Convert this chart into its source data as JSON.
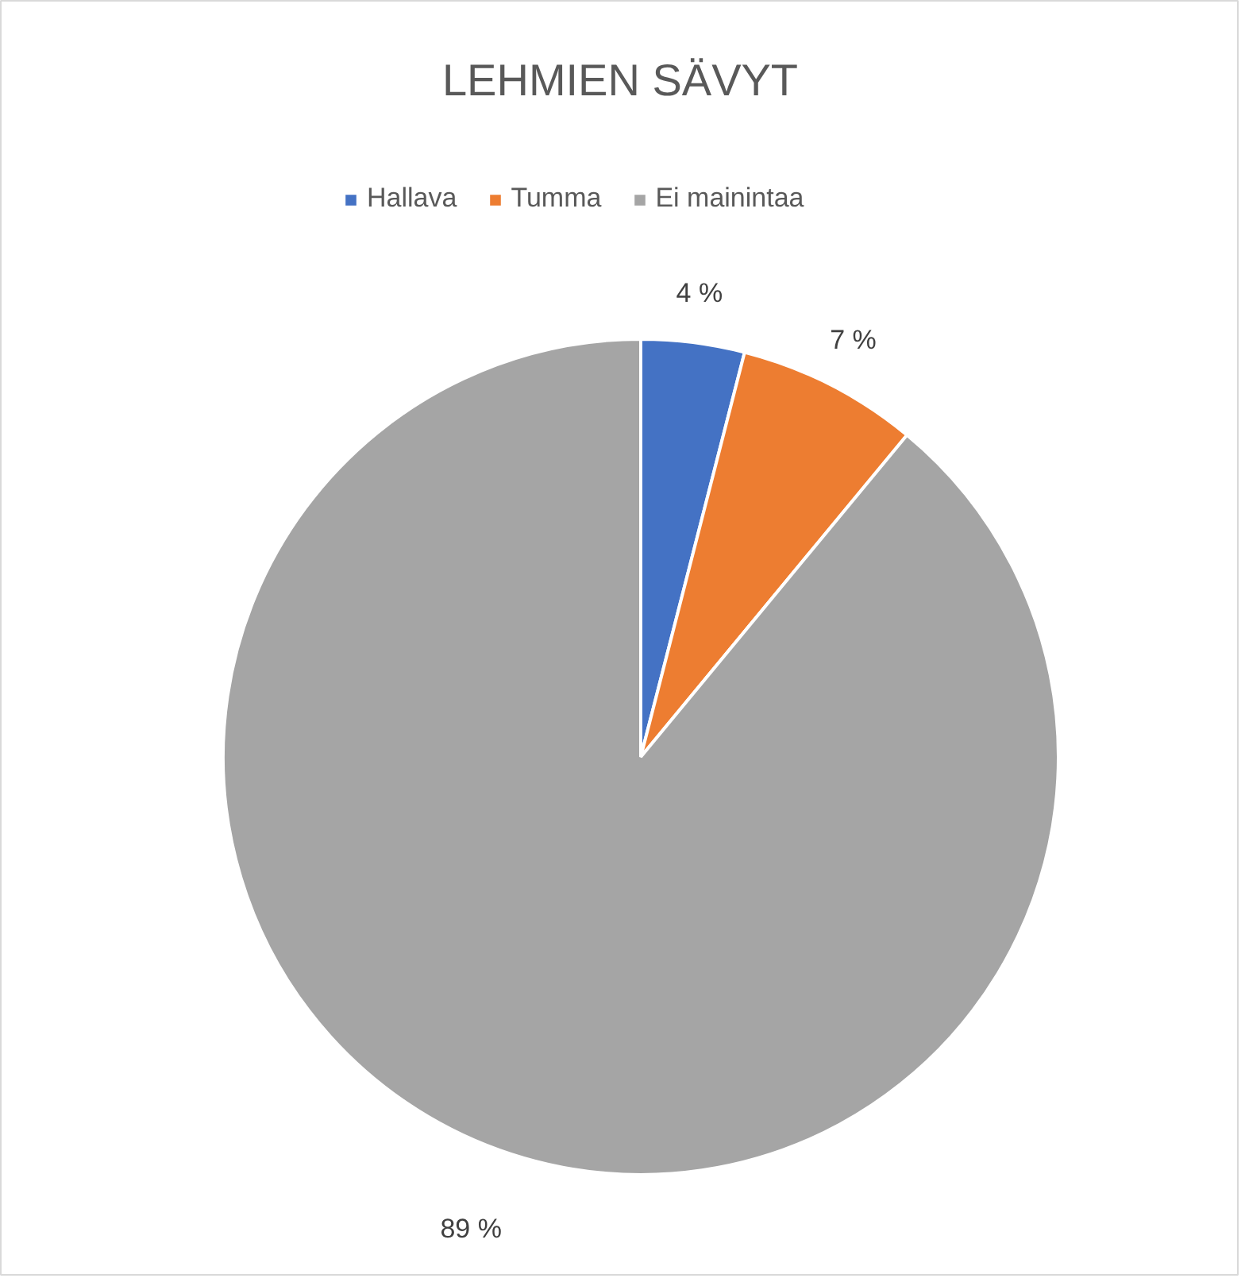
{
  "chart_data": {
    "type": "pie",
    "title": "LEHMIEN SÄVYT",
    "categories": [
      "Hallava",
      "Tumma",
      "Ei mainintaa"
    ],
    "values": [
      4,
      7,
      89
    ],
    "colors": [
      "#4472c4",
      "#ed7d31",
      "#a5a5a5"
    ],
    "value_labels": [
      "4 %",
      "7 %",
      "89 %"
    ],
    "legend": "top"
  }
}
